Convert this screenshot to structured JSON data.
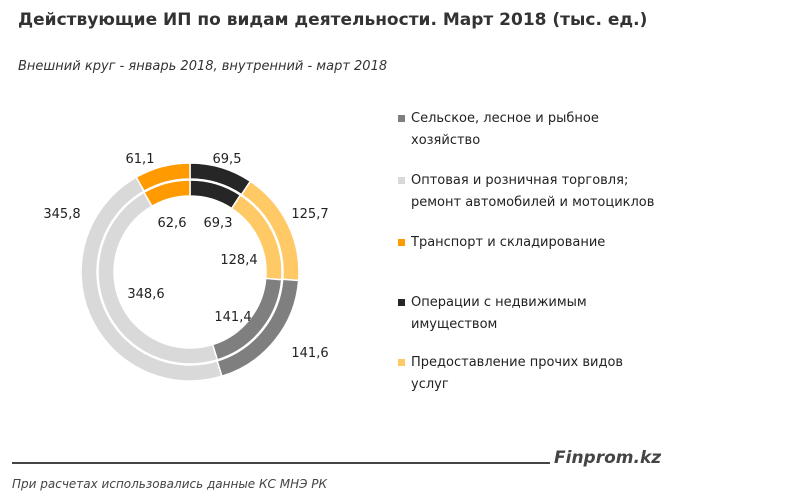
{
  "title": "Действующие  ИП по видам деятельности. Март 2018 (тыс. ед.)",
  "subtitle": "Внешний круг - январь 2018, внутренний - март 2018",
  "brand": "Finprom.kz",
  "source": "При расчетах использовались данные КС МНЭ РК",
  "chart_data": {
    "type": "pie",
    "variant": "doughnut",
    "title": "Действующие  ИП по видам деятельности. Март 2018 (тыс. ед.)",
    "subtitle": "Внешний круг - январь 2018, внутренний - март 2018",
    "categories": [
      "Сельское, лесное и рыбное хозяйство",
      "Оптовая и розничная торговля; ремонт автомобилей и мотоциклов",
      "Транспорт и складирование",
      "Операции с недвижимым имуществом",
      "Предоставление прочих видов услуг"
    ],
    "colors": [
      "#7f7f7f",
      "#d9d9d9",
      "#ff9a00",
      "#262626",
      "#ffc966"
    ],
    "series": [
      {
        "ring": "outer",
        "values": [
          141.6,
          345.8,
          61.1,
          69.5,
          125.7
        ],
        "labels": [
          "141,6",
          "345,8",
          "61,1",
          "69,5",
          "125,7"
        ]
      },
      {
        "ring": "inner",
        "values": [
          141.4,
          348.6,
          62.6,
          69.3,
          128.4
        ],
        "labels": [
          "141,4",
          "348,6",
          "62,6",
          "69,3",
          "128,4"
        ]
      }
    ],
    "legend_position": "right"
  }
}
